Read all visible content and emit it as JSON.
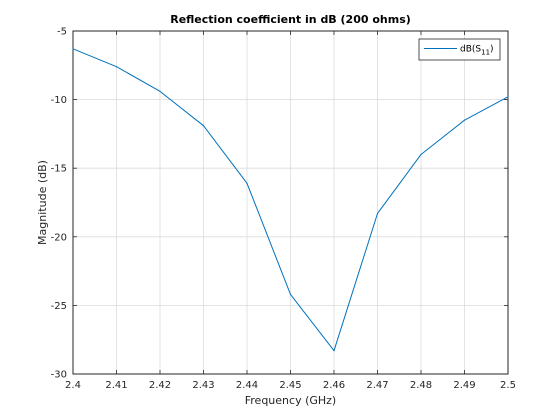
{
  "chart_data": {
    "type": "line",
    "title": "Reflection coefficient in dB (200 ohms)",
    "xlabel": "Frequency (GHz)",
    "ylabel": "Magnitude (dB)",
    "xlim": [
      2.4,
      2.5
    ],
    "ylim": [
      -30,
      -5
    ],
    "xticks": [
      "2.4",
      "2.41",
      "2.42",
      "2.43",
      "2.44",
      "2.45",
      "2.46",
      "2.47",
      "2.48",
      "2.49",
      "2.5"
    ],
    "yticks": [
      "-30",
      "-25",
      "-20",
      "-15",
      "-10",
      "-5"
    ],
    "grid": true,
    "legend_position": "top-right",
    "series": [
      {
        "name": "dB(S11)",
        "legend_main": "dB(S",
        "legend_sub": "11",
        "legend_close": ")",
        "color": "#0072bd",
        "x": [
          2.4,
          2.41,
          2.42,
          2.43,
          2.44,
          2.45,
          2.46,
          2.47,
          2.48,
          2.49,
          2.5
        ],
        "y": [
          -6.3,
          -7.6,
          -9.4,
          -11.9,
          -16.1,
          -24.2,
          -28.3,
          -18.3,
          -14.0,
          -11.5,
          -9.8
        ]
      }
    ]
  }
}
